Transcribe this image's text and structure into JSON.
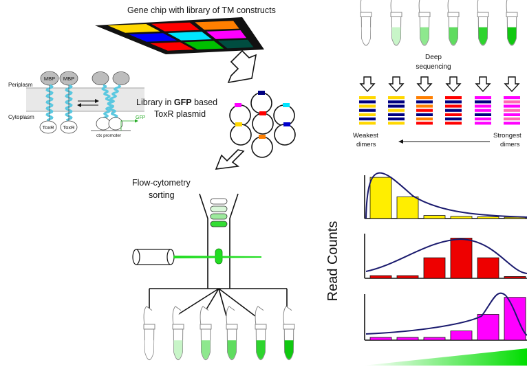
{
  "labels": {
    "gene_chip": "Gene chip with library of TM constructs",
    "periplasm": "Periplasm",
    "cytoplasm": "Cytoplasm",
    "mbp": "MBP",
    "toxr": "ToxR",
    "ctx_promoter": "ctx promoter",
    "gfp_small": "GFP",
    "library_line1_pre": "Library in ",
    "library_line1_bold": "GFP",
    "library_line1_post": " based",
    "library_line2": "ToxR plasmid",
    "flow_line1": "Flow-cytometry",
    "flow_line2": "sorting",
    "deep_line1": "Deep",
    "deep_line2": "sequencing",
    "weakest_line1": "Weakest",
    "weakest_line2": "dimers",
    "strongest_line1": "Strongest",
    "strongest_line2": "dimers",
    "read_counts": "Read Counts"
  },
  "colors": {
    "chip": [
      "#ffd700",
      "#ff0000",
      "#ff7f00",
      "#0000ff",
      "#00e5ff",
      "#ff00ff",
      "#ff0000",
      "#00c000",
      "#004d40"
    ],
    "plasmid_tags": [
      "#000080",
      "#ff00ff",
      "#00e5ff",
      "#ff0000",
      "#ffd700",
      "#0000cc",
      "#ff7f00"
    ],
    "tube_fill": [
      "#ffffff",
      "#c8f5c8",
      "#8ee88e",
      "#5fdc5f",
      "#2ed42e",
      "#10c810"
    ],
    "helix": "#5bc8e0",
    "gfp_green": "#22dd22",
    "curve": "#1a1a6e",
    "hist_yellow": "#ffee00",
    "hist_red": "#ee0000",
    "hist_magenta": "#ff00ff"
  },
  "seq_stacks": [
    [
      "#ffd700",
      "#000080",
      "#ffd700",
      "#000080",
      "#ffd700",
      "#000080",
      "#ffd700"
    ],
    [
      "#ffd700",
      "#000080",
      "#000080",
      "#ffd700",
      "#000080",
      "#000080",
      "#ffd700"
    ],
    [
      "#ff7f00",
      "#000080",
      "#ff7f00",
      "#ff0000",
      "#000080",
      "#ff7f00",
      "#ff0000"
    ],
    [
      "#ff0000",
      "#000080",
      "#ff0000",
      "#000080",
      "#ff0000",
      "#000080",
      "#ff0000"
    ],
    [
      "#ff00ff",
      "#000080",
      "#ff00ff",
      "#ff00ff",
      "#000080",
      "#ff00ff",
      "#ff00ff"
    ],
    [
      "#ff00ff",
      "#ff69b4",
      "#ff00ff",
      "#ff69b4",
      "#ff00ff",
      "#ff69b4",
      "#ff00ff"
    ]
  ],
  "histograms": [
    {
      "color": "#ffee00",
      "values": [
        0.95,
        0.5,
        0.07,
        0.05,
        0.04,
        0.03
      ]
    },
    {
      "color": "#ee0000",
      "values": [
        0.06,
        0.06,
        0.46,
        0.9,
        0.46,
        0.04
      ]
    },
    {
      "color": "#ff00ff",
      "values": [
        0.06,
        0.06,
        0.06,
        0.2,
        0.56,
        0.93
      ]
    }
  ]
}
